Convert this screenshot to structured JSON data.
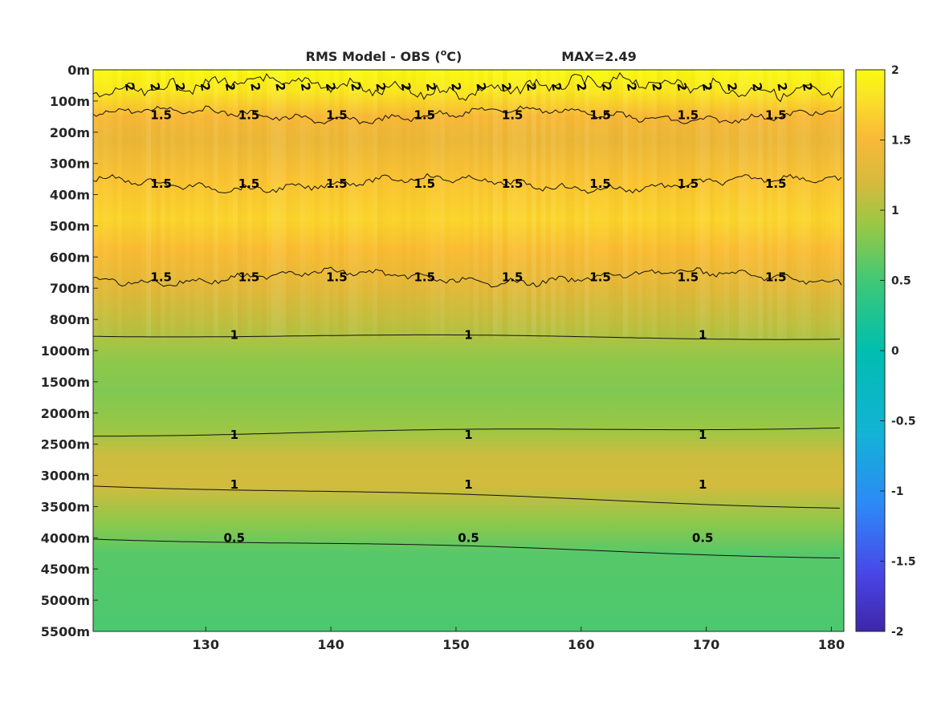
{
  "chart_data": {
    "type": "heatmap",
    "title": "RMS Model - OBS (",
    "title_sup": "o",
    "title_unit": "C)",
    "max_label": "MAX=2.49",
    "x_ticks": [
      130,
      140,
      150,
      160,
      170,
      180
    ],
    "xlim": [
      121,
      181
    ],
    "y_ticks": [
      "0m",
      "100m",
      "200m",
      "300m",
      "400m",
      "500m",
      "600m",
      "700m",
      "800m",
      "1000m",
      "1500m",
      "2000m",
      "2500m",
      "3000m",
      "3500m",
      "4000m",
      "4500m",
      "5000m",
      "5500m"
    ],
    "colorbar": {
      "ticks": [
        "2",
        "1.5",
        "1",
        "0.5",
        "0",
        "-0.5",
        "-1",
        "-1.5",
        "-2"
      ],
      "range": [
        -2,
        2
      ]
    },
    "value_profile": [
      {
        "level": 0,
        "value": 2.0
      },
      {
        "level": 0.7,
        "value": 1.85
      },
      {
        "level": 1.5,
        "value": 1.5
      },
      {
        "level": 2.3,
        "value": 1.38
      },
      {
        "level": 3.5,
        "value": 1.6
      },
      {
        "level": 4.8,
        "value": 1.72
      },
      {
        "level": 5.8,
        "value": 1.55
      },
      {
        "level": 7.0,
        "value": 1.3
      },
      {
        "level": 8.3,
        "value": 1.05
      },
      {
        "level": 9.3,
        "value": 0.85
      },
      {
        "level": 10.3,
        "value": 0.78
      },
      {
        "level": 11.5,
        "value": 0.9
      },
      {
        "level": 12.4,
        "value": 1.15
      },
      {
        "level": 13.3,
        "value": 1.18
      },
      {
        "level": 14.5,
        "value": 0.85
      },
      {
        "level": 15.5,
        "value": 0.6
      },
      {
        "level": 18,
        "value": 0.55
      }
    ],
    "contours": [
      {
        "label": "2",
        "level": 0.55,
        "noisy": true
      },
      {
        "label": "1.5",
        "level": 1.45,
        "noisy": true
      },
      {
        "label": "1.5",
        "level": 3.65,
        "noisy": true
      },
      {
        "label": "1.5",
        "level": 6.65,
        "noisy": true
      },
      {
        "label": "1",
        "level": 8.5,
        "noisy": false
      },
      {
        "label": "1",
        "level": 11.7,
        "noisy": false
      },
      {
        "label": "1",
        "level": 13.3,
        "noisy": false
      },
      {
        "label": "0.5",
        "level": 15.0,
        "noisy": false
      }
    ]
  }
}
